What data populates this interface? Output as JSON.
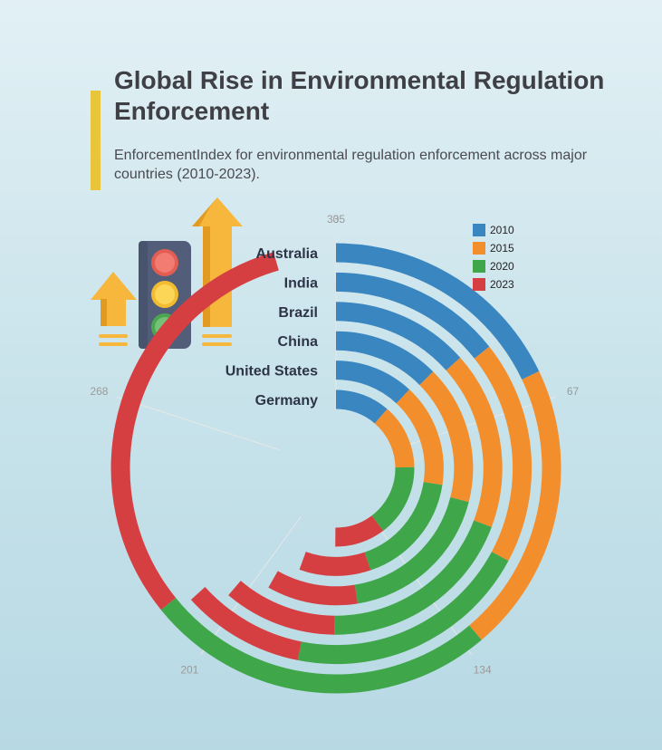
{
  "header": {
    "title": "Global Rise in Environmental Regulation Enforcement",
    "subtitle": "EnforcementIndex for environmental regulation enforcement across major countries (2010-2023)."
  },
  "colors": {
    "2010": "#3a86c0",
    "2015": "#f28e2c",
    "2020": "#3fa64a",
    "2023": "#d63f42",
    "accent": "#e8c53a"
  },
  "icons": [
    "traffic-light-icon",
    "up-arrow-icon"
  ],
  "chart_data": {
    "type": "radial-stacked-bar",
    "title": "Global Rise in Environmental Regulation Enforcement",
    "subtitle": "EnforcementIndex for environmental regulation enforcement across major countries (2010-2023).",
    "categories": [
      "Australia",
      "India",
      "Brazil",
      "China",
      "United States",
      "Germany"
    ],
    "series": [
      {
        "name": "2010",
        "values": [
          60,
          48,
          45,
          42,
          40,
          38
        ]
      },
      {
        "name": "2015",
        "values": [
          70,
          62,
          58,
          55,
          52,
          45
        ]
      },
      {
        "name": "2020",
        "values": [
          85,
          68,
          65,
          62,
          58,
          50
        ]
      },
      {
        "name": "2023",
        "values": [
          105,
          34,
          37,
          36,
          36,
          35
        ]
      }
    ],
    "angle_axis": {
      "min": 0,
      "max": 335,
      "ticks": [
        0,
        67,
        134,
        201,
        268,
        335
      ]
    },
    "legend": {
      "position": "top-right",
      "entries": [
        "2010",
        "2015",
        "2020",
        "2023"
      ]
    }
  }
}
